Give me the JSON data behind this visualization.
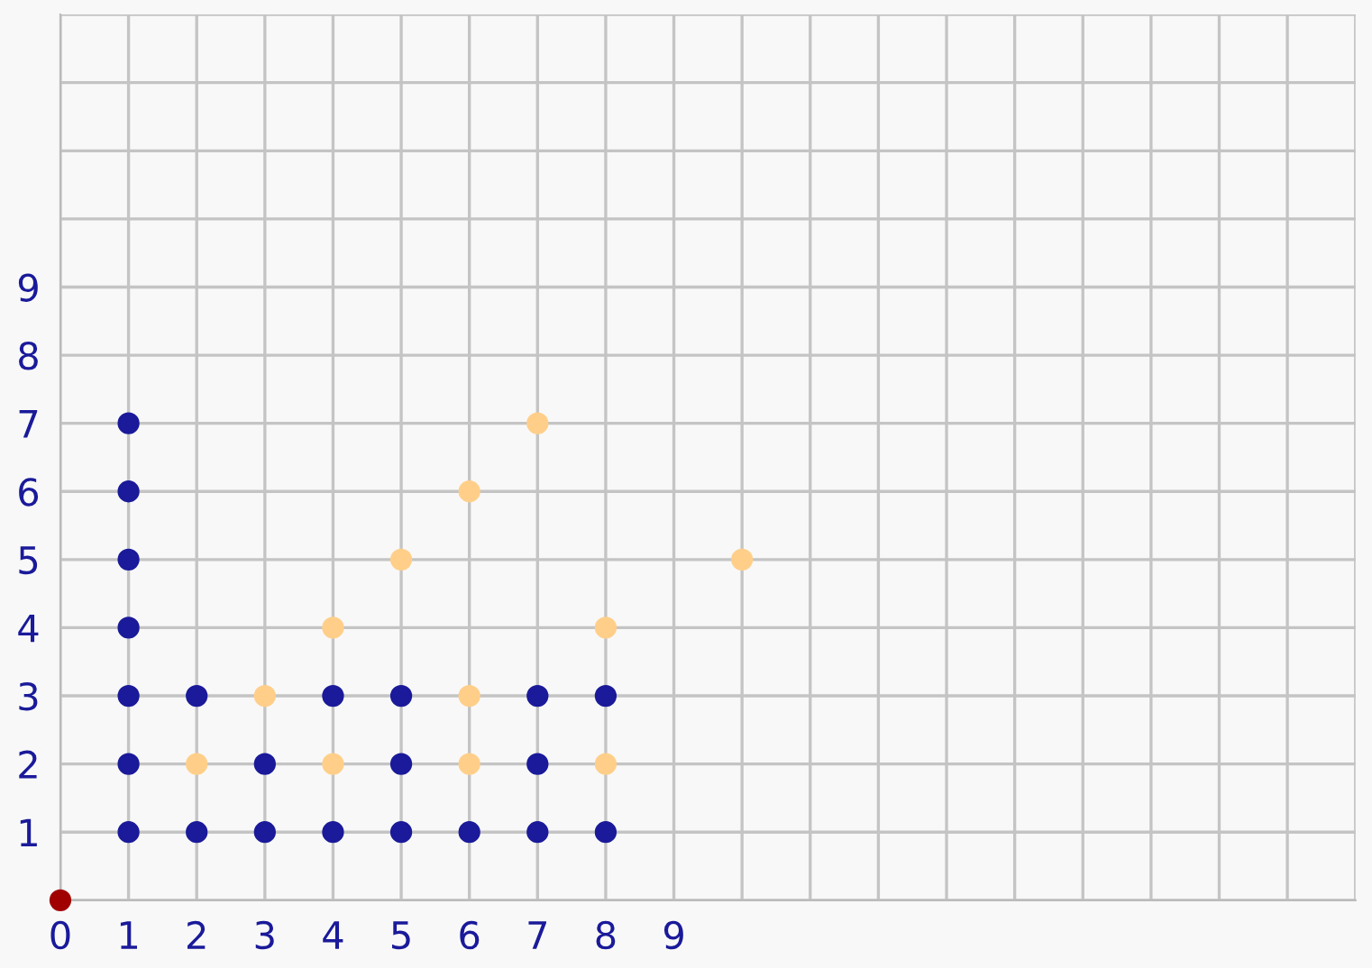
{
  "chart_data": {
    "type": "scatter",
    "marker": "circle",
    "grid": true,
    "legend": false,
    "xlim": [
      0,
      19
    ],
    "ylim": [
      0,
      13
    ],
    "xticks": [
      0,
      1,
      2,
      3,
      4,
      5,
      6,
      7,
      8,
      9,
      {
        "value": 10,
        "label": null
      },
      {
        "value": 11,
        "label": null
      },
      {
        "value": 12,
        "label": null
      },
      {
        "value": 13,
        "label": null
      },
      {
        "value": 14,
        "label": null
      },
      {
        "value": 15,
        "label": null
      },
      {
        "value": 16,
        "label": null
      },
      {
        "value": 17,
        "label": null
      },
      {
        "value": 18,
        "label": null
      },
      {
        "value": 19,
        "label": null
      }
    ],
    "yticks": [
      {
        "value": 0,
        "label": null
      },
      1,
      2,
      3,
      4,
      5,
      6,
      7,
      8,
      9,
      {
        "value": 10,
        "label": null
      },
      {
        "value": 11,
        "label": null
      },
      {
        "value": 12,
        "label": null
      },
      {
        "value": 13,
        "label": null
      }
    ],
    "series": [
      {
        "color": "#1a1a9a",
        "x": [
          1,
          1,
          1,
          1,
          1,
          1,
          1,
          2,
          2,
          3,
          3,
          4,
          4,
          5,
          5,
          5,
          6,
          7,
          7,
          7,
          8,
          8
        ],
        "values": [
          1,
          2,
          3,
          4,
          5,
          6,
          7,
          1,
          3,
          1,
          2,
          1,
          3,
          1,
          2,
          3,
          1,
          1,
          2,
          3,
          1,
          3
        ]
      },
      {
        "color": "#ffcf8a",
        "x": [
          2,
          3,
          4,
          4,
          5,
          6,
          6,
          6,
          7,
          8,
          8,
          10
        ],
        "values": [
          2,
          3,
          2,
          4,
          5,
          2,
          3,
          6,
          7,
          2,
          4,
          5
        ]
      },
      {
        "color": "#a00000",
        "x": [
          0
        ],
        "values": [
          0
        ]
      }
    ]
  }
}
